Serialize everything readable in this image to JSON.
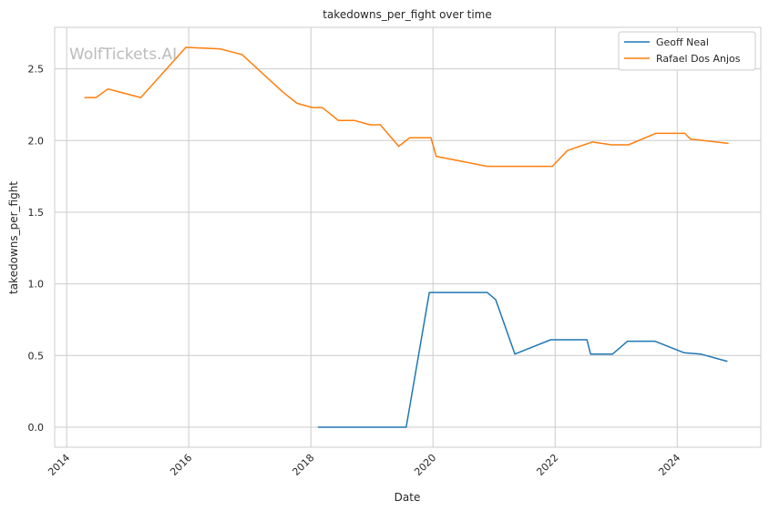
{
  "watermark": "WolfTickets.AI",
  "chart_data": {
    "type": "line",
    "title": "takedowns_per_fight over time",
    "xlabel": "Date",
    "ylabel": "takedowns_per_fight",
    "xlim": [
      "2013-10-21",
      "2025-05-15"
    ],
    "ylim": [
      -0.14,
      2.79
    ],
    "x_ticks": [
      "2014",
      "2016",
      "2018",
      "2020",
      "2022",
      "2024"
    ],
    "y_ticks": [
      "0.0",
      "0.5",
      "1.0",
      "1.5",
      "2.0",
      "2.5"
    ],
    "grid": true,
    "legend_position": "top-right",
    "series": [
      {
        "name": "Geoff Neal",
        "color": "#1f77b4",
        "points": [
          [
            "2018-02-15",
            0.0
          ],
          [
            "2019-07-25",
            0.0
          ],
          [
            "2019-12-10",
            0.94
          ],
          [
            "2020-11-20",
            0.94
          ],
          [
            "2021-01-10",
            0.89
          ],
          [
            "2021-05-05",
            0.51
          ],
          [
            "2021-12-05",
            0.61
          ],
          [
            "2022-07-10",
            0.61
          ],
          [
            "2022-08-01",
            0.51
          ],
          [
            "2022-12-10",
            0.51
          ],
          [
            "2023-03-10",
            0.6
          ],
          [
            "2023-08-20",
            0.6
          ],
          [
            "2024-02-10",
            0.52
          ],
          [
            "2024-05-20",
            0.51
          ],
          [
            "2024-10-25",
            0.46
          ]
        ]
      },
      {
        "name": "Rafael Dos Anjos",
        "color": "#ff7f0e",
        "points": [
          [
            "2014-04-20",
            2.3
          ],
          [
            "2014-06-25",
            2.3
          ],
          [
            "2014-09-05",
            2.36
          ],
          [
            "2015-03-20",
            2.3
          ],
          [
            "2015-12-15",
            2.65
          ],
          [
            "2016-07-05",
            2.64
          ],
          [
            "2016-11-15",
            2.6
          ],
          [
            "2017-07-15",
            2.34
          ],
          [
            "2017-10-10",
            2.26
          ],
          [
            "2018-01-10",
            2.23
          ],
          [
            "2018-03-10",
            2.23
          ],
          [
            "2018-06-15",
            2.14
          ],
          [
            "2018-09-20",
            2.14
          ],
          [
            "2018-12-20",
            2.11
          ],
          [
            "2019-02-20",
            2.11
          ],
          [
            "2019-06-10",
            1.96
          ],
          [
            "2019-08-15",
            2.02
          ],
          [
            "2019-12-20",
            2.02
          ],
          [
            "2020-01-20",
            1.89
          ],
          [
            "2020-11-20",
            1.82
          ],
          [
            "2021-12-15",
            1.82
          ],
          [
            "2022-03-15",
            1.93
          ],
          [
            "2022-08-10",
            1.99
          ],
          [
            "2022-12-05",
            1.97
          ],
          [
            "2023-03-15",
            1.97
          ],
          [
            "2023-08-25",
            2.05
          ],
          [
            "2024-02-15",
            2.05
          ],
          [
            "2024-03-20",
            2.01
          ],
          [
            "2024-10-30",
            1.98
          ]
        ]
      }
    ]
  }
}
